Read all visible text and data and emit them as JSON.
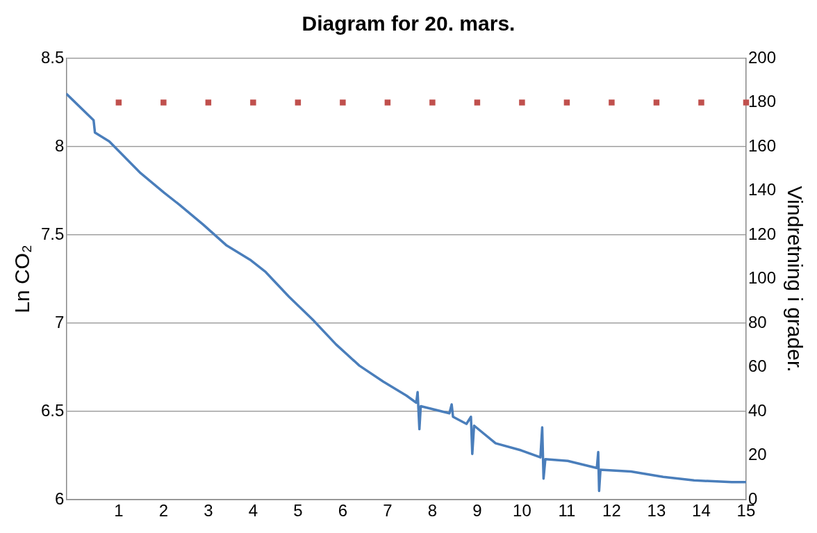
{
  "chart_data": {
    "type": "line",
    "title": "Diagram for 20. mars.",
    "ylabel": "Ln CO₂",
    "y2label": "Vindretning i grader.",
    "xlim": [
      -0.17,
      15
    ],
    "xticks": [
      1,
      2,
      3,
      4,
      5,
      6,
      7,
      8,
      9,
      10,
      11,
      12,
      13,
      14,
      15
    ],
    "ylim": [
      6,
      8.5
    ],
    "yticks": [
      6,
      6.5,
      7,
      7.5,
      8,
      8.5
    ],
    "y2lim": [
      0,
      200
    ],
    "y2ticks": [
      0,
      20,
      40,
      60,
      80,
      100,
      120,
      140,
      160,
      180,
      200
    ],
    "grid": "y",
    "legend": false,
    "series": [
      {
        "color": "#4a7ebb",
        "marker": "none",
        "x": [
          -0.17,
          0.44,
          0.47,
          0.79,
          1.49,
          2.01,
          2.36,
          2.88,
          3.41,
          3.93,
          4.28,
          4.8,
          5.33,
          5.85,
          6.37,
          6.9,
          7.42,
          7.64,
          7.67,
          7.71,
          7.74,
          8.38,
          8.43,
          8.46,
          8.76,
          8.86,
          8.89,
          8.93,
          9.41,
          9.98,
          10.41,
          10.45,
          10.48,
          10.52,
          11.02,
          11.67,
          11.7,
          11.72,
          11.75,
          12.43,
          13.15,
          13.84,
          14.68,
          15.0
        ],
        "values": [
          8.3,
          8.15,
          8.08,
          8.03,
          7.85,
          7.74,
          7.67,
          7.56,
          7.44,
          7.36,
          7.29,
          7.15,
          7.02,
          6.88,
          6.76,
          6.67,
          6.59,
          6.55,
          6.61,
          6.4,
          6.53,
          6.49,
          6.54,
          6.47,
          6.43,
          6.47,
          6.26,
          6.42,
          6.32,
          6.28,
          6.24,
          6.41,
          6.12,
          6.23,
          6.22,
          6.18,
          6.27,
          6.05,
          6.17,
          6.16,
          6.13,
          6.11,
          6.1,
          6.1
        ]
      },
      {
        "type": "scatter",
        "axis": "y2",
        "color": "#c0504d",
        "marker": "square",
        "x": [
          1,
          2,
          3,
          4,
          5,
          6,
          7,
          8,
          9,
          10,
          11,
          12,
          13,
          14,
          15
        ],
        "values": [
          180,
          180,
          180,
          180,
          180,
          180,
          180,
          180,
          180,
          180,
          180,
          180,
          180,
          180,
          180
        ]
      }
    ]
  }
}
